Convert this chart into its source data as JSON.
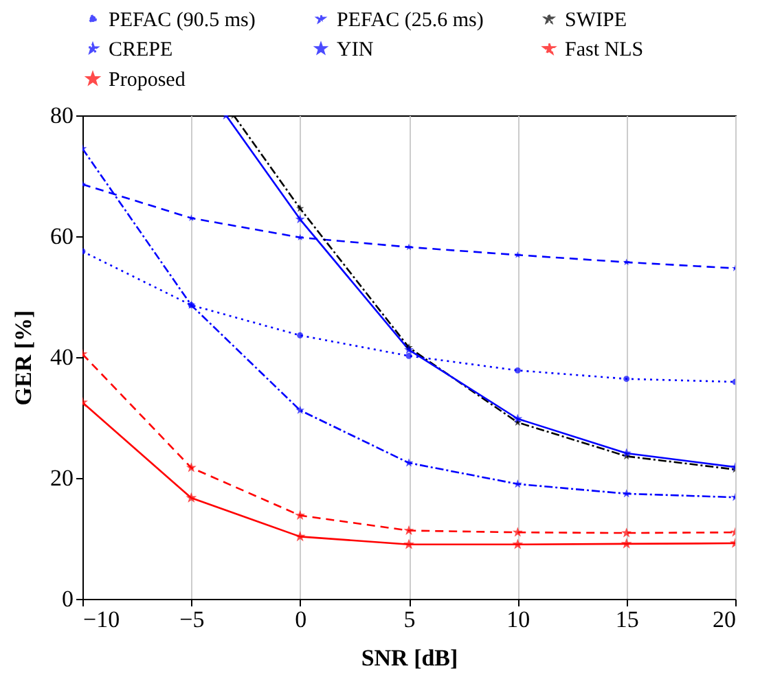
{
  "chart_data": {
    "type": "line",
    "xlabel": "SNR [dB]",
    "ylabel": "GER [%]",
    "x": [
      -10,
      -5,
      0,
      5,
      10,
      15,
      20
    ],
    "xlim": [
      -10,
      20
    ],
    "xticks": [
      -10,
      -5,
      0,
      5,
      10,
      15,
      20
    ],
    "ylim": [
      0,
      80
    ],
    "yticks": [
      0,
      20,
      40,
      60,
      80
    ],
    "grid": "x",
    "legend": "top",
    "series": [
      {
        "name": "PEFAC (90.5 ms)",
        "color": "#0000ff",
        "line_style": "dotted",
        "marker": "circle",
        "values": [
          57.5,
          48.6,
          43.6,
          40.2,
          37.8,
          36.4,
          35.9
        ]
      },
      {
        "name": "PEFAC (25.6 ms)",
        "color": "#0000ff",
        "line_style": "dashed",
        "marker": "star",
        "values": [
          68.6,
          63,
          59.8,
          58.2,
          56.9,
          55.7,
          54.7
        ]
      },
      {
        "name": "SWIPE",
        "color": "#000000",
        "line_style": "dashdot",
        "marker": "star",
        "x": [
          -3.05,
          0,
          5,
          10,
          15,
          20
        ],
        "values": [
          80,
          64.6,
          41.6,
          29.2,
          23.6,
          21.4
        ]
      },
      {
        "name": "CREPE",
        "color": "#0000ff",
        "line_style": "dashdot",
        "marker": "star",
        "values": [
          74.5,
          48.6,
          31.2,
          22.5,
          19,
          17.4,
          16.8
        ]
      },
      {
        "name": "YIN",
        "color": "#0000ff",
        "line_style": "solid",
        "marker": "star",
        "x": [
          -3.4,
          0,
          5,
          10,
          15,
          20
        ],
        "values": [
          80,
          62.8,
          41.2,
          29.8,
          24.1,
          21.8
        ]
      },
      {
        "name": "Fast NLS",
        "color": "#ff0000",
        "line_style": "dashed",
        "marker": "star",
        "values": [
          40.5,
          21.7,
          13.8,
          11.3,
          11,
          10.9,
          11
        ]
      },
      {
        "name": "Proposed",
        "color": "#ff0000",
        "line_style": "solid",
        "marker": "star",
        "values": [
          32.5,
          16.7,
          10.3,
          9,
          9,
          9.1,
          9.2
        ]
      }
    ]
  }
}
